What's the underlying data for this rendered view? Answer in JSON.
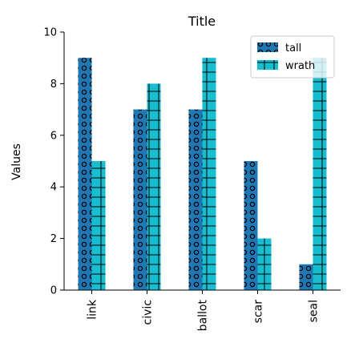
{
  "chart_data": {
    "type": "bar",
    "title": "Title",
    "xlabel": "",
    "ylabel": "Values",
    "ylim": [
      0,
      10
    ],
    "yticks": [
      0,
      2,
      4,
      6,
      8,
      10
    ],
    "categories": [
      "link",
      "civic",
      "ballot",
      "scar",
      "seal"
    ],
    "series": [
      {
        "name": "tall",
        "values": [
          9,
          7,
          7,
          5,
          1
        ],
        "color": "#1f77b4",
        "pattern": "circles"
      },
      {
        "name": "wrath",
        "values": [
          5,
          8,
          9,
          2,
          9
        ],
        "color": "#17becf",
        "pattern": "grid"
      }
    ],
    "grid": false,
    "legend_position": "top-right"
  }
}
